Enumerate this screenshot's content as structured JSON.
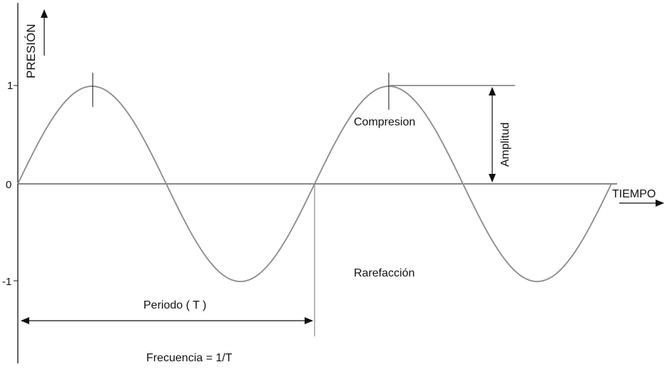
{
  "labels": {
    "y_axis": "PRESIÓN",
    "x_axis": "TIEMPO",
    "compression": "Compresion",
    "rarefaction": "Rarefacción",
    "amplitude": "Amplitud",
    "period": "Periodo ( T )",
    "frequency": "Frecuencia = 1/T"
  },
  "ticks": [
    "1",
    "0",
    "-1"
  ],
  "colors": {
    "wave": "#8a8a8a",
    "axis": "#111111",
    "text": "#111111"
  },
  "wave": {
    "amplitude": 1,
    "cycles": 2
  }
}
